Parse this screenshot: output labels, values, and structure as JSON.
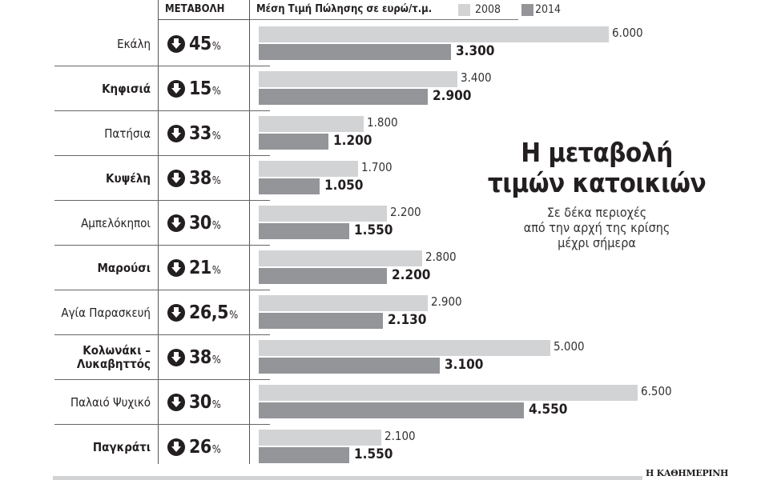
{
  "header": {
    "change_label": "ΜΕΤΑΒΟΛΗ",
    "price_label": "Μέση Τιμή Πώλησης σε ευρώ/τ.μ.",
    "legend": [
      {
        "label": "2008",
        "color": "#d2d3d5"
      },
      {
        "label": "2014",
        "color": "#939598"
      }
    ]
  },
  "title": {
    "line1": "Η μεταβολή",
    "line2": "τιμών κατοικιών",
    "sub1": "Σε δέκα περιοχές",
    "sub2": "από την αρχή της κρίσης",
    "sub3": "μέχρι σήμερα"
  },
  "source": "Η ΚΑΘΗΜΕΡΙΝΗ",
  "rows": [
    {
      "area": "Εκάλη",
      "bold": false,
      "change": "45",
      "v2008": 6000,
      "l2008": "6.000",
      "v2014": 3300,
      "l2014": "3.300"
    },
    {
      "area": "Κηφισιά",
      "bold": true,
      "change": "15",
      "v2008": 3400,
      "l2008": "3.400",
      "v2014": 2900,
      "l2014": "2.900"
    },
    {
      "area": "Πατήσια",
      "bold": false,
      "change": "33",
      "v2008": 1800,
      "l2008": "1.800",
      "v2014": 1200,
      "l2014": "1.200"
    },
    {
      "area": "Κυψέλη",
      "bold": true,
      "change": "38",
      "v2008": 1700,
      "l2008": "1.700",
      "v2014": 1050,
      "l2014": "1.050"
    },
    {
      "area": "Αμπελόκηποι",
      "bold": false,
      "change": "30",
      "v2008": 2200,
      "l2008": "2.200",
      "v2014": 1550,
      "l2014": "1.550"
    },
    {
      "area": "Μαρούσι",
      "bold": true,
      "change": "21",
      "v2008": 2800,
      "l2008": "2.800",
      "v2014": 2200,
      "l2014": "2.200"
    },
    {
      "area": "Αγία Παρασκευή",
      "bold": false,
      "change": "26,5",
      "v2008": 2900,
      "l2008": "2.900",
      "v2014": 2130,
      "l2014": "2.130"
    },
    {
      "area": "Κολωνάκι – Λυκαβηττός",
      "area_l1": "Κολωνάκι –",
      "area_l2": "Λυκαβηττός",
      "bold": true,
      "change": "38",
      "v2008": 5000,
      "l2008": "5.000",
      "v2014": 3100,
      "l2014": "3.100"
    },
    {
      "area": "Παλαιό Ψυχικό",
      "bold": false,
      "change": "30",
      "v2008": 6500,
      "l2008": "6.500",
      "v2014": 4550,
      "l2014": "4.550"
    },
    {
      "area": "Παγκράτι",
      "bold": true,
      "change": "26",
      "v2008": 2100,
      "l2008": "2.100",
      "v2014": 1550,
      "l2014": "1.550"
    }
  ],
  "percent_sign": "%",
  "chart_data": {
    "type": "bar",
    "orientation": "horizontal",
    "title": "Η μεταβολή τιμών κατοικιών",
    "subtitle": "Σε δέκα περιοχές από την αρχή της κρίσης μέχρι σήμερα",
    "xlabel": "Μέση Τιμή Πώλησης σε ευρώ/τ.μ.",
    "ylabel": "",
    "categories": [
      "Εκάλη",
      "Κηφισιά",
      "Πατήσια",
      "Κυψέλη",
      "Αμπελόκηποι",
      "Μαρούσι",
      "Αγία Παρασκευή",
      "Κολωνάκι – Λυκαβηττός",
      "Παλαιό Ψυχικό",
      "Παγκράτι"
    ],
    "series": [
      {
        "name": "2008",
        "color": "#d2d3d5",
        "values": [
          6000,
          3400,
          1800,
          1700,
          2200,
          2800,
          2900,
          5000,
          6500,
          2100
        ]
      },
      {
        "name": "2014",
        "color": "#939598",
        "values": [
          3300,
          2900,
          1200,
          1050,
          1550,
          2200,
          2130,
          3100,
          4550,
          1550
        ]
      }
    ],
    "change_percent": [
      -45,
      -15,
      -33,
      -38,
      -30,
      -21,
      -26.5,
      -38,
      -30,
      -26
    ],
    "legend_position": "top",
    "grid": false,
    "source": "Η ΚΑΘΗΜΕΡΙΝΗ"
  }
}
